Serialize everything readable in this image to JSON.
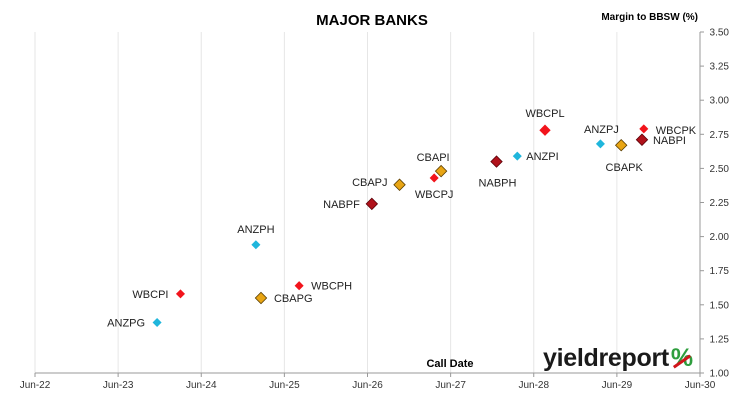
{
  "chart_data": {
    "type": "scatter",
    "title": "MAJOR BANKS",
    "ylabel": "Margin to BBSW (%)",
    "xlabel": "Call Date",
    "x_ticks": [
      "Jun-22",
      "Jun-23",
      "Jun-24",
      "Jun-25",
      "Jun-26",
      "Jun-27",
      "Jun-28",
      "Jun-29",
      "Jun-30"
    ],
    "x_range": [
      "2022-06",
      "2030-06"
    ],
    "ylim": [
      1.0,
      3.5
    ],
    "y_ticks": [
      "1.00",
      "1.25",
      "1.50",
      "1.75",
      "2.00",
      "2.25",
      "2.50",
      "2.75",
      "3.00",
      "3.25",
      "3.50"
    ],
    "y_axis_position": "right",
    "grid": "vertical",
    "colors": {
      "ANZ": "#1fb6dc",
      "CBA": "#e8a514",
      "NAB": "#b0121b",
      "WBC": "#f2141c"
    },
    "points": [
      {
        "label": "ANZPG",
        "bank": "ANZ",
        "x": "2023-11-20",
        "y": 1.37
      },
      {
        "label": "WBCPI",
        "bank": "WBC",
        "x": "2024-03-01",
        "y": 1.58
      },
      {
        "label": "CBAPG",
        "bank": "CBA",
        "x": "2025-02-20",
        "y": 1.55
      },
      {
        "label": "ANZPH",
        "bank": "ANZ",
        "x": "2025-01-28",
        "y": 1.94
      },
      {
        "label": "WBCPH",
        "bank": "WBC",
        "x": "2025-08-05",
        "y": 1.64
      },
      {
        "label": "NABPF",
        "bank": "NAB",
        "x": "2026-06-20",
        "y": 2.24
      },
      {
        "label": "CBAPJ",
        "bank": "CBA",
        "x": "2026-10-20",
        "y": 2.38
      },
      {
        "label": "WBCPJ",
        "bank": "WBC",
        "x": "2027-03-20",
        "y": 2.43
      },
      {
        "label": "CBAPI",
        "bank": "CBA",
        "x": "2027-04-20",
        "y": 2.48
      },
      {
        "label": "NABPH",
        "bank": "NAB",
        "x": "2027-12-20",
        "y": 2.55
      },
      {
        "label": "ANZPI",
        "bank": "ANZ",
        "x": "2028-03-20",
        "y": 2.59
      },
      {
        "label": "WBCPL",
        "bank": "WBC",
        "x": "2028-07-20",
        "y": 2.78
      },
      {
        "label": "ANZPJ",
        "bank": "ANZ",
        "x": "2029-03-20",
        "y": 2.68
      },
      {
        "label": "CBAPK",
        "bank": "CBA",
        "x": "2029-06-20",
        "y": 2.67
      },
      {
        "label": "NABPI",
        "bank": "NAB",
        "x": "2029-09-20",
        "y": 2.71
      },
      {
        "label": "WBCPK",
        "bank": "WBC",
        "x": "2029-09-28",
        "y": 2.79
      }
    ]
  },
  "branding": {
    "logo_text": "yieldreport",
    "logo_symbol": "%"
  }
}
